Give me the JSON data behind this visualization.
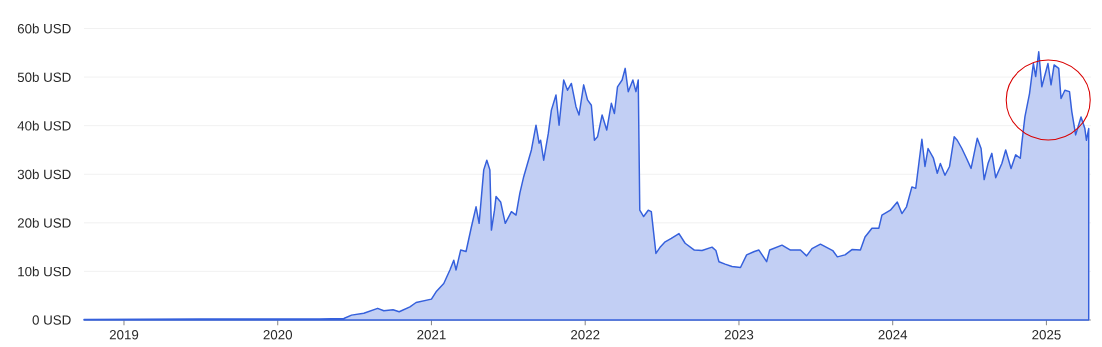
{
  "chart_data": {
    "type": "area",
    "x": [
      2018.74,
      2019.5,
      2019.88,
      2020.27,
      2020.43,
      2020.48,
      2020.56,
      2020.65,
      2020.69,
      2020.75,
      2020.79,
      2020.86,
      2020.9,
      2021.0,
      2021.03,
      2021.08,
      2021.12,
      2021.145,
      2021.16,
      2021.19,
      2021.225,
      2021.26,
      2021.29,
      2021.31,
      2021.34,
      2021.36,
      2021.38,
      2021.39,
      2021.41,
      2021.42,
      2021.45,
      2021.48,
      2021.52,
      2021.55,
      2021.575,
      2021.6,
      2021.65,
      2021.68,
      2021.7,
      2021.71,
      2021.73,
      2021.76,
      2021.78,
      2021.81,
      2021.83,
      2021.86,
      2021.885,
      2021.91,
      2021.94,
      2021.96,
      2021.99,
      2022.015,
      2022.04,
      2022.06,
      2022.08,
      2022.11,
      2022.14,
      2022.17,
      2022.19,
      2022.21,
      2022.24,
      2022.26,
      2022.28,
      2022.31,
      2022.33,
      2022.345,
      2022.355,
      2022.38,
      2022.41,
      2022.43,
      2022.46,
      2022.49,
      2022.52,
      2022.56,
      2022.61,
      2022.65,
      2022.71,
      2022.76,
      2022.825,
      2022.85,
      2022.87,
      2022.91,
      2022.955,
      2023.01,
      2023.05,
      2023.1,
      2023.13,
      2023.18,
      2023.2,
      2023.28,
      2023.335,
      2023.4,
      2023.44,
      2023.475,
      2023.53,
      2023.61,
      2023.64,
      2023.69,
      2023.735,
      2023.79,
      2023.82,
      2023.865,
      2023.91,
      2023.93,
      2023.985,
      2024.03,
      2024.06,
      2024.09,
      2024.125,
      2024.15,
      2024.17,
      2024.19,
      2024.21,
      2024.23,
      2024.265,
      2024.29,
      2024.31,
      2024.34,
      2024.37,
      2024.4,
      2024.42,
      2024.45,
      2024.48,
      2024.51,
      2024.55,
      2024.575,
      2024.595,
      2024.62,
      2024.645,
      2024.67,
      2024.71,
      2024.735,
      2024.77,
      2024.8,
      2024.83,
      2024.84,
      2024.86,
      2024.89,
      2024.915,
      2024.93,
      2024.95,
      2024.97,
      2025.01,
      2025.03,
      2025.05,
      2025.08,
      2025.095,
      2025.12,
      2025.15,
      2025.165,
      2025.19,
      2025.225,
      2025.25,
      2025.26,
      2025.275
    ],
    "values": [
      0.1,
      0.2,
      0.2,
      0.2,
      0.3,
      1.0,
      1.4,
      2.4,
      1.9,
      2.1,
      1.7,
      2.7,
      3.6,
      4.3,
      5.8,
      7.5,
      10.3,
      12.3,
      10.3,
      14.4,
      14.1,
      19.2,
      23.3,
      19.9,
      30.9,
      32.9,
      30.9,
      18.5,
      22.6,
      25.4,
      24.3,
      19.9,
      22.3,
      21.6,
      26.1,
      29.5,
      35.0,
      40.1,
      36.4,
      37.0,
      32.9,
      38.4,
      43.2,
      46.3,
      40.1,
      49.4,
      47.3,
      48.7,
      43.9,
      42.2,
      48.4,
      45.3,
      44.2,
      37.0,
      37.7,
      42.2,
      39.1,
      44.6,
      42.5,
      48.0,
      49.4,
      51.8,
      47.0,
      49.4,
      47.0,
      49.4,
      22.6,
      21.3,
      22.6,
      22.3,
      13.7,
      15.1,
      16.1,
      16.8,
      17.8,
      15.8,
      14.4,
      14.3,
      15.0,
      14.3,
      12.0,
      11.5,
      11.0,
      10.8,
      13.4,
      14.1,
      14.4,
      12.0,
      14.4,
      15.4,
      14.4,
      14.4,
      13.2,
      14.7,
      15.6,
      14.3,
      13.0,
      13.4,
      14.5,
      14.4,
      17.1,
      18.9,
      18.9,
      21.6,
      22.6,
      24.3,
      21.9,
      23.3,
      27.4,
      27.1,
      32.2,
      37.2,
      31.6,
      35.3,
      33.3,
      30.2,
      32.2,
      29.8,
      31.6,
      37.7,
      37.0,
      35.3,
      33.3,
      31.2,
      37.4,
      35.3,
      28.9,
      32.2,
      34.3,
      29.3,
      32.2,
      35.0,
      31.2,
      34.0,
      33.3,
      36.4,
      41.8,
      46.6,
      52.8,
      50.1,
      55.2,
      48.0,
      52.8,
      48.4,
      52.5,
      51.8,
      45.6,
      47.3,
      47.0,
      42.9,
      38.1,
      41.8,
      39.4,
      37.0,
      39.4
    ],
    "color": "#3560dc",
    "xlim": [
      2018.74,
      2025.29
    ],
    "ylim": [
      0,
      60
    ],
    "xticks": [
      2019,
      2020,
      2021,
      2022,
      2023,
      2024,
      2025
    ],
    "yticks": [
      {
        "value": 0,
        "label": "0 USD"
      },
      {
        "value": 10,
        "label": "10b USD"
      },
      {
        "value": 20,
        "label": "20b USD"
      },
      {
        "value": 30,
        "label": "30b USD"
      },
      {
        "value": 40,
        "label": "40b USD"
      },
      {
        "value": 50,
        "label": "50b USD"
      },
      {
        "value": 60,
        "label": "60b USD"
      }
    ],
    "grid": "y"
  }
}
